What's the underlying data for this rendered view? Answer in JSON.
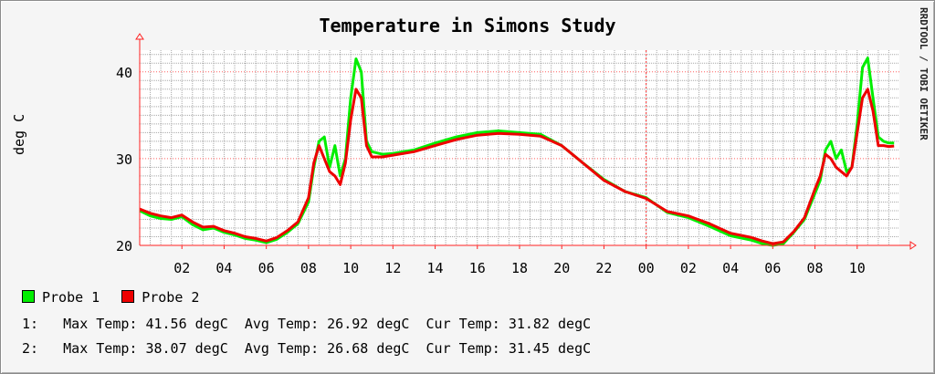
{
  "chart_data": {
    "type": "line",
    "title": "Temperature in Simons Study",
    "ylabel": "deg C",
    "xlabel": "",
    "ylim": [
      20,
      42.5
    ],
    "y_ticks": [
      20,
      30,
      40
    ],
    "x_tick_labels": [
      "02",
      "04",
      "06",
      "08",
      "10",
      "12",
      "14",
      "16",
      "18",
      "20",
      "22",
      "00",
      "02",
      "04",
      "06",
      "08",
      "10"
    ],
    "x_hours": [
      0,
      0.5,
      1.0,
      1.5,
      2.0,
      2.5,
      3.0,
      3.5,
      4.0,
      4.5,
      5.0,
      5.5,
      6.0,
      6.5,
      7.0,
      7.5,
      8.0,
      8.25,
      8.5,
      8.75,
      9.0,
      9.25,
      9.5,
      9.75,
      10.0,
      10.25,
      10.5,
      10.75,
      11.0,
      11.5,
      12.0,
      13.0,
      14.0,
      15.0,
      16.0,
      17.0,
      18.0,
      19.0,
      20.0,
      21.0,
      22.0,
      23.0,
      24.0,
      25.0,
      26.0,
      27.0,
      28.0,
      29.0,
      29.5,
      30.0,
      30.5,
      31.0,
      31.5,
      32.0,
      32.25,
      32.5,
      32.75,
      33.0,
      33.25,
      33.5,
      33.75,
      34.0,
      34.25,
      34.5,
      34.75,
      35.0,
      35.25,
      35.5,
      35.75
    ],
    "series": [
      {
        "name": "Probe 1",
        "color": "#00ee00",
        "values": [
          24.0,
          23.4,
          23.1,
          23.0,
          23.3,
          22.4,
          21.8,
          22.0,
          21.5,
          21.2,
          20.8,
          20.6,
          20.3,
          20.7,
          21.5,
          22.5,
          25.0,
          29.0,
          32.0,
          32.5,
          29.0,
          31.5,
          28.0,
          30.0,
          37.0,
          41.5,
          40.0,
          32.0,
          30.8,
          30.5,
          30.6,
          31.0,
          31.8,
          32.5,
          33.0,
          33.2,
          33.0,
          32.8,
          31.5,
          29.5,
          27.6,
          26.2,
          25.5,
          23.8,
          23.2,
          22.2,
          21.1,
          20.6,
          20.2,
          20.0,
          20.2,
          21.5,
          23.0,
          26.0,
          27.5,
          31.0,
          32.0,
          30.0,
          31.0,
          28.5,
          29.0,
          34.0,
          40.5,
          41.6,
          37.0,
          32.5,
          32.0,
          31.8,
          31.8
        ]
      },
      {
        "name": "Probe 2",
        "color": "#ee0000",
        "values": [
          24.2,
          23.7,
          23.4,
          23.2,
          23.5,
          22.7,
          22.1,
          22.2,
          21.7,
          21.4,
          21.0,
          20.8,
          20.5,
          20.9,
          21.7,
          22.7,
          25.5,
          29.5,
          31.5,
          30.0,
          28.5,
          28.0,
          27.0,
          29.5,
          34.5,
          38.0,
          37.0,
          31.5,
          30.2,
          30.2,
          30.4,
          30.8,
          31.5,
          32.2,
          32.7,
          32.9,
          32.8,
          32.6,
          31.5,
          29.5,
          27.5,
          26.2,
          25.4,
          23.9,
          23.4,
          22.5,
          21.4,
          20.9,
          20.5,
          20.2,
          20.4,
          21.6,
          23.2,
          26.5,
          28.0,
          30.5,
          30.0,
          29.0,
          28.5,
          28.0,
          29.0,
          33.0,
          37.0,
          38.0,
          35.5,
          31.5,
          31.5,
          31.4,
          31.45
        ]
      }
    ],
    "legend": [
      "Probe 1",
      "Probe 2"
    ],
    "grid": true,
    "legend_placement": "bottom-left"
  },
  "watermark": "RRDTOOL / TOBI OETIKER",
  "stats": [
    {
      "index": "1:",
      "max_label": "Max Temp:",
      "max": "41.56 degC",
      "avg_label": "Avg Temp:",
      "avg": "26.92 degC",
      "cur_label": "Cur Temp:",
      "cur": "31.82 degC"
    },
    {
      "index": "2:",
      "max_label": "Max Temp:",
      "max": "38.07 degC",
      "avg_label": "Avg Temp:",
      "avg": "26.68 degC",
      "cur_label": "Cur Temp:",
      "cur": "31.45 degC"
    }
  ]
}
